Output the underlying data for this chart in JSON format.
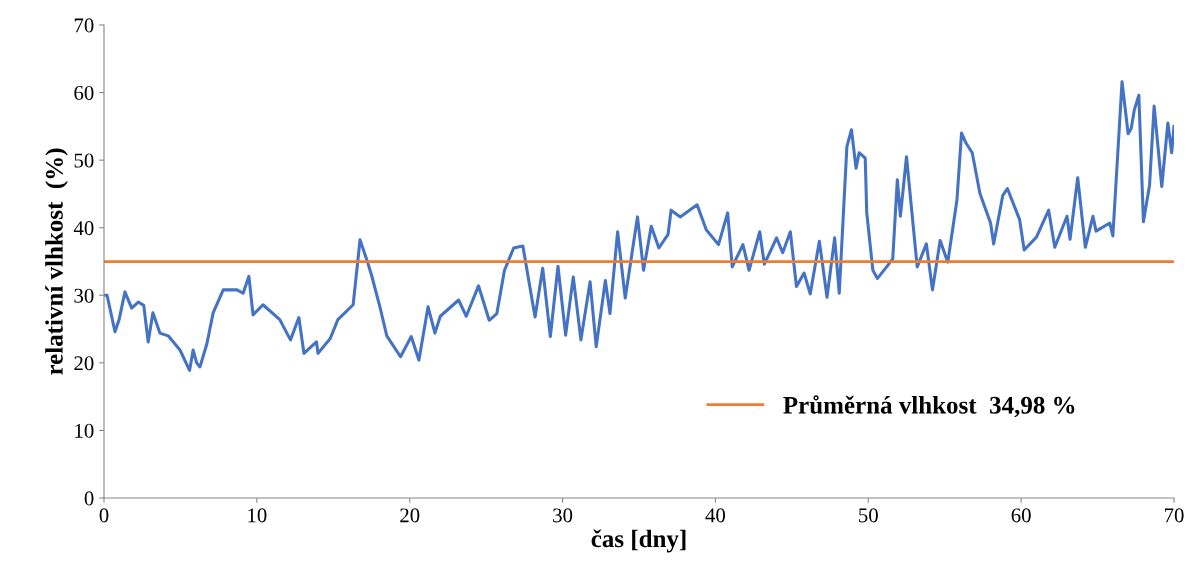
{
  "chart_data": {
    "type": "line",
    "xlabel": "čas [dny]",
    "ylabel": "relativní vlhkost  (%)",
    "xlim": [
      0,
      70
    ],
    "xticks": [
      0,
      10,
      20,
      30,
      40,
      50,
      60,
      70
    ],
    "ylim": [
      0,
      70
    ],
    "yticks": [
      0,
      10,
      20,
      30,
      40,
      50,
      60,
      70
    ],
    "grid": false,
    "legend": "lower right",
    "marker": "none",
    "line_style": "solid",
    "series": [
      {
        "color": "#4472c4",
        "x": [
          0,
          0.2,
          0.72,
          1.0,
          1.37,
          1.81,
          2.24,
          2.6,
          2.89,
          3.2,
          3.66,
          4.2,
          4.97,
          5.6,
          5.83,
          6.06,
          6.28,
          6.74,
          7.14,
          7.8,
          8.7,
          9.1,
          9.48,
          9.75,
          10.4,
          11.5,
          12.2,
          12.75,
          13.08,
          13.9,
          14.0,
          14.8,
          15.3,
          16.3,
          16.75,
          17.2,
          17.5,
          18.05,
          18.5,
          19.4,
          20.1,
          20.6,
          21.2,
          21.65,
          22.0,
          23.2,
          23.7,
          24.5,
          25.2,
          25.7,
          26.2,
          26.8,
          27.4,
          28.2,
          28.7,
          29.2,
          29.7,
          30.2,
          30.7,
          31.2,
          31.8,
          32.2,
          32.8,
          33.1,
          33.6,
          34.1,
          34.9,
          35.3,
          35.8,
          36.3,
          36.9,
          37.1,
          37.7,
          38.8,
          39.4,
          40.2,
          40.8,
          41.1,
          41.8,
          42.2,
          42.9,
          43.2,
          44.0,
          44.4,
          44.9,
          45.3,
          45.8,
          46.2,
          46.8,
          47.3,
          47.8,
          48.1,
          48.6,
          48.9,
          49.2,
          49.4,
          49.8,
          49.9,
          50.3,
          50.6,
          51.2,
          51.6,
          51.9,
          52.1,
          52.5,
          53.2,
          53.8,
          54.2,
          54.7,
          55.2,
          55.8,
          56.1,
          56.4,
          56.8,
          57.3,
          58.0,
          58.2,
          58.8,
          59.1,
          59.9,
          60.2,
          61.0,
          61.8,
          62.2,
          63.0,
          63.2,
          63.7,
          64.2,
          64.7,
          64.9,
          65.8,
          66.0,
          66.6,
          67.0,
          67.2,
          67.4,
          67.7,
          68.0,
          68.4,
          68.7,
          69.2,
          69.6,
          69.85,
          70
        ],
        "values": [
          30.0,
          30.0,
          24.6,
          26.5,
          30.5,
          28.1,
          29.0,
          28.5,
          23.1,
          27.4,
          24.4,
          24.0,
          21.9,
          18.9,
          21.9,
          20.0,
          19.4,
          22.9,
          27.4,
          30.8,
          30.8,
          30.3,
          32.8,
          27.1,
          28.6,
          26.4,
          23.4,
          26.7,
          21.4,
          23.1,
          21.4,
          23.6,
          26.4,
          28.6,
          38.2,
          35.2,
          33.0,
          28.3,
          24.0,
          20.9,
          23.9,
          20.4,
          28.3,
          24.4,
          26.9,
          29.3,
          26.9,
          31.4,
          26.3,
          27.3,
          33.7,
          37.0,
          37.3,
          26.8,
          34.0,
          23.9,
          34.3,
          24.1,
          32.7,
          23.4,
          32.0,
          22.4,
          32.2,
          27.3,
          39.4,
          29.6,
          41.6,
          33.7,
          40.2,
          37.0,
          39.0,
          42.6,
          41.6,
          43.4,
          39.7,
          37.5,
          42.2,
          34.2,
          37.5,
          33.7,
          39.4,
          34.6,
          38.5,
          36.3,
          39.4,
          31.3,
          33.3,
          30.2,
          38.0,
          29.7,
          38.5,
          30.3,
          52.0,
          54.5,
          48.8,
          51.1,
          50.3,
          42.2,
          33.7,
          32.5,
          34.2,
          35.4,
          47.1,
          41.7,
          50.5,
          34.2,
          37.6,
          30.8,
          38.1,
          34.9,
          44.1,
          54.0,
          52.5,
          51.1,
          45.1,
          40.7,
          37.6,
          44.8,
          45.8,
          41.2,
          36.7,
          38.6,
          42.6,
          37.1,
          41.7,
          38.3,
          47.4,
          37.1,
          41.7,
          39.5,
          40.7,
          38.8,
          61.6,
          53.9,
          54.7,
          57.4,
          59.6,
          40.9,
          46.3,
          58.0,
          46.1,
          55.5,
          51.1,
          55.0
        ]
      }
    ],
    "ref_lines": [
      {
        "axis": "y",
        "value": 34.98,
        "label": "Průměrná vlhkost  34,98 %",
        "color": "#ed7d31",
        "line_style": "solid"
      }
    ]
  }
}
